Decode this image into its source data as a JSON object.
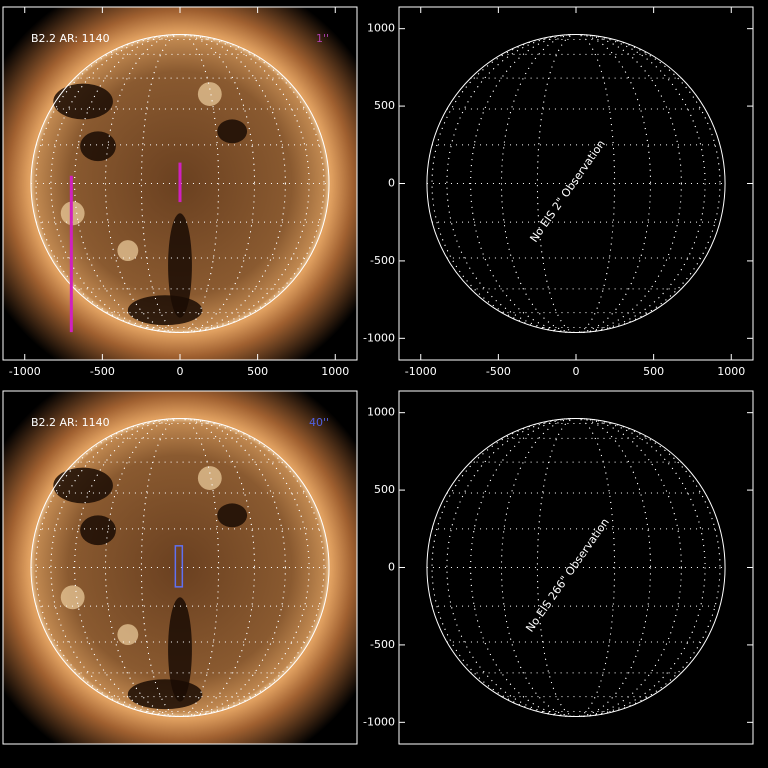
{
  "chart_data": [
    {
      "type": "sun",
      "label": "B2.2 AR: 1140",
      "slit_label": "1''",
      "slit_label_color": "#b040b0",
      "xlim": [
        -1140,
        1140
      ],
      "ylim": [
        -1140,
        1140
      ],
      "xticks": [
        -1000,
        -500,
        0,
        500,
        1000
      ],
      "limb_radius": 960,
      "overlays": [
        {
          "shape": "line",
          "color": "#d020c0",
          "x": [
            -700,
            -700
          ],
          "y": [
            50,
            -960
          ]
        },
        {
          "shape": "line",
          "color": "#d020c0",
          "x": [
            0,
            0
          ],
          "y": [
            135,
            -120
          ]
        }
      ]
    },
    {
      "type": "empty",
      "annotation": "No EIS 2\" Observation",
      "xlim": [
        -1140,
        1140
      ],
      "ylim": [
        -1140,
        1140
      ],
      "xticks": [
        -1000,
        -500,
        0,
        500,
        1000
      ],
      "yticks": [
        1000,
        500,
        0,
        -500,
        -1000
      ],
      "limb_radius": 960
    },
    {
      "type": "sun",
      "label": "B2.2 AR: 1140",
      "slit_label": "40''",
      "slit_label_color": "#5060e0",
      "xlim": [
        -1140,
        1140
      ],
      "ylim": [
        -1140,
        1140
      ],
      "limb_radius": 960,
      "overlays": [
        {
          "shape": "box",
          "color": "#6070f0",
          "x": [
            -30,
            15
          ],
          "y": [
            140,
            -125
          ]
        }
      ]
    },
    {
      "type": "empty",
      "annotation": "No EIS 266\" Observation",
      "xlim": [
        -1140,
        1140
      ],
      "ylim": [
        -1140,
        1140
      ],
      "yticks": [
        1000,
        500,
        0,
        -500,
        -1000
      ],
      "limb_radius": 960
    }
  ]
}
